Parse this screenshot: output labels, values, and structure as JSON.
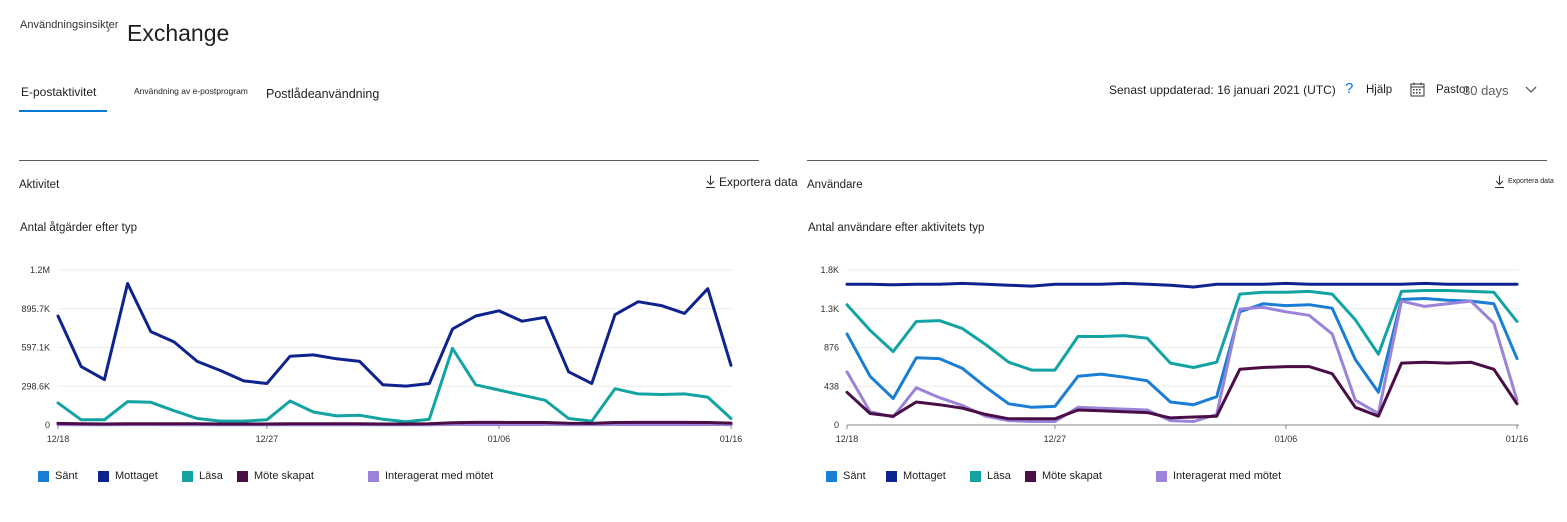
{
  "header": {
    "breadcrumb": "Användningsinsikter",
    "title": "Exchange"
  },
  "tabs": [
    {
      "label": "E-postaktivitet",
      "active": true
    },
    {
      "label": "Användning av e-postprogram",
      "active": false
    },
    {
      "label": "Postlådeanvändning",
      "active": false
    }
  ],
  "toolbar": {
    "updated": "Senast uppdaterad: 16 januari 2021 (UTC)",
    "help_icon": "question-icon",
    "help": "Hjälp",
    "calendar_icon": "calendar-icon",
    "period_label": "Pastor",
    "period_value": "30 days",
    "chevron_icon": "chevron-down-icon"
  },
  "panels": [
    {
      "title": "Aktivitet",
      "export": "Exportera data",
      "export_icon": "download-icon"
    },
    {
      "title": "Användare",
      "export": "Exportera data",
      "export_icon": "download-icon"
    }
  ],
  "colors": {
    "sent": "#1a7fd4",
    "received": "#0e238e",
    "read": "#14a3a3",
    "meeting_created": "#4a0d45",
    "meeting_interacted": "#9b83d9",
    "accent": "#0078d4"
  },
  "chart_data": [
    {
      "type": "line",
      "title": "Antal åtgärder efter typ",
      "xlabel": "",
      "ylabel": "",
      "x_tick_labels": [
        "12/18",
        "12/27",
        "01/06",
        "01/16"
      ],
      "x_tick_index": [
        0,
        9,
        19,
        29
      ],
      "y_ticks": [
        "0",
        "298.6K",
        "597.1K",
        "895.7K",
        "1.2M"
      ],
      "ylim": [
        0,
        1194400
      ],
      "grid": true,
      "legend": "bottom",
      "series": [
        {
          "name": "Sänt",
          "color": "#1a7fd4",
          "values": [
            8000,
            5000,
            5000,
            6000,
            6000,
            5000,
            5000,
            4000,
            4000,
            4000,
            5000,
            5000,
            5000,
            5000,
            5000,
            4000,
            4000,
            4000,
            8000,
            9000,
            9000,
            9000,
            8000,
            8000,
            6000,
            5000,
            8000,
            8000,
            8000,
            7000
          ]
        },
        {
          "name": "Mottaget",
          "color": "#0e238e",
          "values": [
            840000,
            450000,
            350000,
            1090000,
            720000,
            640000,
            490000,
            420000,
            340000,
            320000,
            530000,
            540000,
            510000,
            490000,
            310000,
            300000,
            320000,
            740000,
            840000,
            880000,
            800000,
            830000,
            410000,
            320000,
            850000,
            950000,
            920000,
            860000,
            1050000,
            460000
          ]
        },
        {
          "name": "Läsa",
          "color": "#14a3a3",
          "values": [
            170000,
            40000,
            40000,
            180000,
            175000,
            110000,
            50000,
            30000,
            30000,
            40000,
            185000,
            100000,
            70000,
            75000,
            45000,
            25000,
            45000,
            590000,
            310000,
            270000,
            230000,
            190000,
            50000,
            30000,
            280000,
            240000,
            235000,
            240000,
            215000,
            50000
          ]
        },
        {
          "name": "Möte skapat",
          "color": "#4a0d45",
          "values": [
            12000,
            9000,
            8000,
            10000,
            10000,
            9000,
            9000,
            8000,
            8000,
            8000,
            9000,
            9000,
            9000,
            9000,
            8000,
            8000,
            9000,
            18000,
            20000,
            20000,
            19000,
            19000,
            13000,
            12000,
            19000,
            20000,
            20000,
            20000,
            19000,
            15000
          ]
        },
        {
          "name": "Interagerat med mötet",
          "color": "#9b83d9",
          "values": [
            3000,
            2000,
            2000,
            3000,
            3000,
            2000,
            2000,
            2000,
            2000,
            2000,
            2000,
            2000,
            2000,
            2000,
            2000,
            2000,
            2000,
            4000,
            4000,
            4000,
            4000,
            4000,
            3000,
            3000,
            4000,
            4000,
            4000,
            4000,
            4000,
            3000
          ]
        }
      ]
    },
    {
      "type": "line",
      "title": "Antal användare efter aktivitets typ",
      "xlabel": "",
      "ylabel": "",
      "x_tick_labels": [
        "12/18",
        "12/27",
        "01/06",
        "01/16"
      ],
      "x_tick_index": [
        0,
        9,
        19,
        29
      ],
      "y_ticks": [
        "0",
        "438",
        "876",
        "1.3K",
        "1.8K"
      ],
      "ylim": [
        0,
        1752
      ],
      "grid": true,
      "legend": "bottom",
      "series": [
        {
          "name": "Sänt",
          "color": "#1a7fd4",
          "values": [
            1030,
            550,
            300,
            760,
            750,
            640,
            430,
            240,
            200,
            210,
            550,
            575,
            540,
            500,
            260,
            230,
            320,
            1280,
            1370,
            1350,
            1360,
            1320,
            740,
            370,
            1420,
            1430,
            1410,
            1400,
            1370,
            750
          ]
        },
        {
          "name": "Mottaget",
          "color": "#0e238e",
          "values": [
            1590,
            1590,
            1585,
            1590,
            1590,
            1600,
            1590,
            1580,
            1570,
            1590,
            1590,
            1590,
            1600,
            1590,
            1580,
            1560,
            1590,
            1590,
            1590,
            1600,
            1590,
            1590,
            1590,
            1590,
            1590,
            1600,
            1590,
            1590,
            1590,
            1590
          ]
        },
        {
          "name": "Läsa",
          "color": "#14a3a3",
          "values": [
            1360,
            1070,
            830,
            1170,
            1180,
            1090,
            910,
            710,
            620,
            620,
            1000,
            1000,
            1010,
            980,
            700,
            650,
            710,
            1480,
            1500,
            1500,
            1510,
            1480,
            1190,
            800,
            1510,
            1520,
            1520,
            1510,
            1500,
            1170
          ]
        },
        {
          "name": "Möte skapat",
          "color": "#4a0d45",
          "values": [
            370,
            130,
            100,
            260,
            230,
            190,
            120,
            70,
            70,
            70,
            170,
            160,
            150,
            140,
            80,
            90,
            100,
            630,
            650,
            660,
            660,
            580,
            200,
            100,
            700,
            710,
            700,
            710,
            630,
            240
          ]
        },
        {
          "name": "Interagerat med mötet",
          "color": "#9b83d9",
          "values": [
            600,
            150,
            90,
            420,
            310,
            220,
            100,
            50,
            40,
            40,
            200,
            190,
            180,
            170,
            50,
            40,
            120,
            1310,
            1330,
            1280,
            1240,
            1030,
            280,
            130,
            1400,
            1340,
            1370,
            1400,
            1150,
            280
          ]
        }
      ]
    }
  ]
}
